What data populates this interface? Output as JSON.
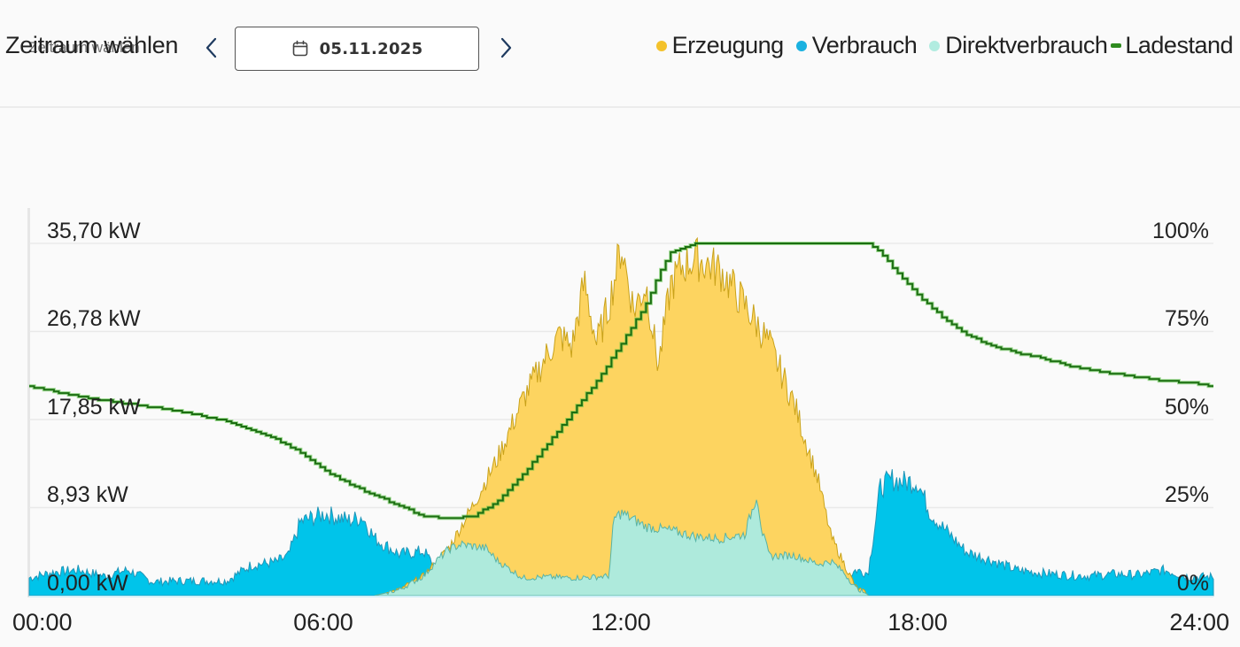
{
  "header": {
    "period_label": "Zeitraum wählen",
    "period_label_ghost": "Zeitraum wählen",
    "prev_icon": "chevron-left-icon",
    "next_icon": "chevron-right-icon",
    "calendar_icon": "calendar-icon",
    "date_value": "05.11.2025"
  },
  "legend": [
    {
      "label": "Erzeugung",
      "color": "#f4c22b",
      "marker": "dot"
    },
    {
      "label": "Verbrauch",
      "color": "#1ab1e0",
      "marker": "dot"
    },
    {
      "label": "Direktverbrauch",
      "color": "#b1ece0",
      "marker": "dot"
    },
    {
      "label": "Ladestand",
      "color": "#2e8b1e",
      "marker": "dash"
    }
  ],
  "colors": {
    "erzeugung_fill": "#fdd460",
    "erzeugung_line": "#c9a21a",
    "verbrauch_fill": "#00c4ea",
    "verbrauch_line": "#2196b8",
    "direkt_fill": "#aeeadc",
    "direkt_line": "#58b3a6",
    "ladestand_line": "#1c6e12",
    "ladestand_outline": "#55c23f",
    "grid": "#e9e9e9"
  },
  "chart_data": {
    "type": "area",
    "title": "",
    "xlabel": "",
    "ylabel": "kW",
    "y2label": "%",
    "x_ticks": [
      "00:00",
      "06:00",
      "12:00",
      "18:00",
      "24:00"
    ],
    "y_ticks": [
      "0,00 kW",
      "8,93 kW",
      "17,85 kW",
      "26,78 kW",
      "35,70 kW"
    ],
    "y2_ticks": [
      "0%",
      "25%",
      "50%",
      "75%",
      "100%"
    ],
    "ylim": [
      0,
      35.7
    ],
    "y2lim": [
      0,
      100
    ],
    "xlim_hours": [
      0,
      24
    ],
    "grid": true,
    "legend_position": "top-right",
    "series": [
      {
        "name": "Verbrauch",
        "axis": "left",
        "unit": "kW",
        "x": [
          0,
          0.5,
          1,
          1.5,
          2,
          2.5,
          3,
          3.5,
          4,
          4.5,
          5,
          5.25,
          5.5,
          6,
          6.5,
          6.75,
          7,
          7.5,
          8,
          8.5,
          9,
          9.5,
          10,
          10.5,
          11,
          11.5,
          12,
          12.5,
          13,
          13.5,
          14,
          14.5,
          15,
          15.5,
          16,
          16.25,
          16.5,
          16.75,
          17,
          17.25,
          17.5,
          17.75,
          18,
          18.25,
          18.5,
          19,
          19.5,
          20,
          20.5,
          21,
          21.5,
          22,
          22.5,
          23,
          23.5,
          24
        ],
        "values": [
          1.8,
          2.4,
          2.6,
          2.0,
          2.6,
          1.4,
          1.5,
          1.5,
          1.5,
          3.1,
          3.4,
          4.0,
          7.5,
          8.3,
          7.6,
          8.0,
          5.8,
          4.2,
          4.5,
          0.9,
          0.2,
          0,
          0,
          0,
          0,
          0,
          0,
          0,
          0,
          0,
          0,
          0,
          0,
          0,
          0.1,
          0.5,
          1.5,
          2.6,
          2.3,
          11.0,
          11.8,
          11.5,
          11.6,
          8.5,
          7.0,
          4.4,
          3.6,
          2.6,
          2.3,
          2.1,
          2.0,
          2.2,
          2.1,
          2.6,
          1.9,
          1.9
        ]
      },
      {
        "name": "Erzeugung",
        "axis": "left",
        "unit": "kW",
        "x": [
          7,
          7.5,
          8,
          8.5,
          9,
          9.5,
          10,
          10.5,
          10.75,
          11,
          11.25,
          11.5,
          11.75,
          12,
          12.25,
          12.5,
          12.75,
          13,
          13.25,
          13.5,
          14,
          14.5,
          15,
          15.5,
          16,
          16.25,
          16.5,
          16.75,
          17
        ],
        "values": [
          0,
          0.6,
          2.0,
          4.8,
          9.2,
          14.0,
          19.8,
          24.5,
          26.4,
          25.2,
          31.8,
          25.5,
          29.5,
          35.5,
          29.0,
          31.5,
          23.2,
          31.5,
          33.5,
          34.2,
          33.0,
          29.5,
          25.5,
          19.5,
          11.5,
          6.0,
          3.4,
          0.9,
          0.1
        ]
      },
      {
        "name": "Direktverbrauch",
        "axis": "left",
        "unit": "kW",
        "x": [
          7,
          7.5,
          8,
          8.25,
          8.5,
          8.75,
          9,
          9.25,
          9.5,
          10,
          10.5,
          11,
          11.5,
          11.75,
          11.85,
          12,
          12.5,
          13,
          13.5,
          14,
          14.5,
          14.75,
          14.85,
          15,
          15.5,
          16,
          16.25,
          16.5,
          16.75,
          17
        ],
        "values": [
          0,
          0.6,
          2.0,
          3.5,
          4.7,
          5.2,
          5.0,
          4.8,
          3.5,
          1.8,
          1.9,
          1.8,
          1.9,
          2.0,
          7.8,
          8.4,
          7.0,
          6.6,
          6.0,
          5.8,
          6.2,
          10.3,
          6.5,
          4.0,
          4.1,
          3.2,
          3.5,
          2.4,
          0.8,
          0.1
        ]
      },
      {
        "name": "Ladestand",
        "axis": "right",
        "unit": "%",
        "x": [
          0,
          0.5,
          1,
          1.5,
          2,
          2.5,
          3,
          3.5,
          4,
          4.5,
          5,
          5.5,
          6,
          6.5,
          7,
          7.5,
          8,
          8.5,
          9,
          9.5,
          10,
          10.5,
          11,
          11.5,
          12,
          12.5,
          12.75,
          13,
          13.5,
          14,
          14.5,
          15,
          15.5,
          16,
          16.5,
          17,
          17.25,
          17.5,
          18,
          18.5,
          19,
          19.5,
          20,
          20.5,
          21,
          21.5,
          22,
          22.5,
          23,
          23.5,
          24
        ],
        "values": [
          59.5,
          58,
          56.5,
          55.5,
          54.5,
          53.5,
          52.5,
          51,
          49.5,
          47,
          44.5,
          40.5,
          35.5,
          31.5,
          28.5,
          25.5,
          22.5,
          22,
          22.5,
          27,
          34.5,
          43,
          52,
          61,
          71.5,
          83,
          91,
          97.5,
          100,
          100,
          100,
          100,
          100,
          100,
          100,
          100,
          97.5,
          93,
          85.5,
          79,
          74,
          71,
          69,
          67.5,
          65.5,
          64,
          63,
          62,
          61,
          60.5,
          59.5
        ]
      }
    ]
  }
}
